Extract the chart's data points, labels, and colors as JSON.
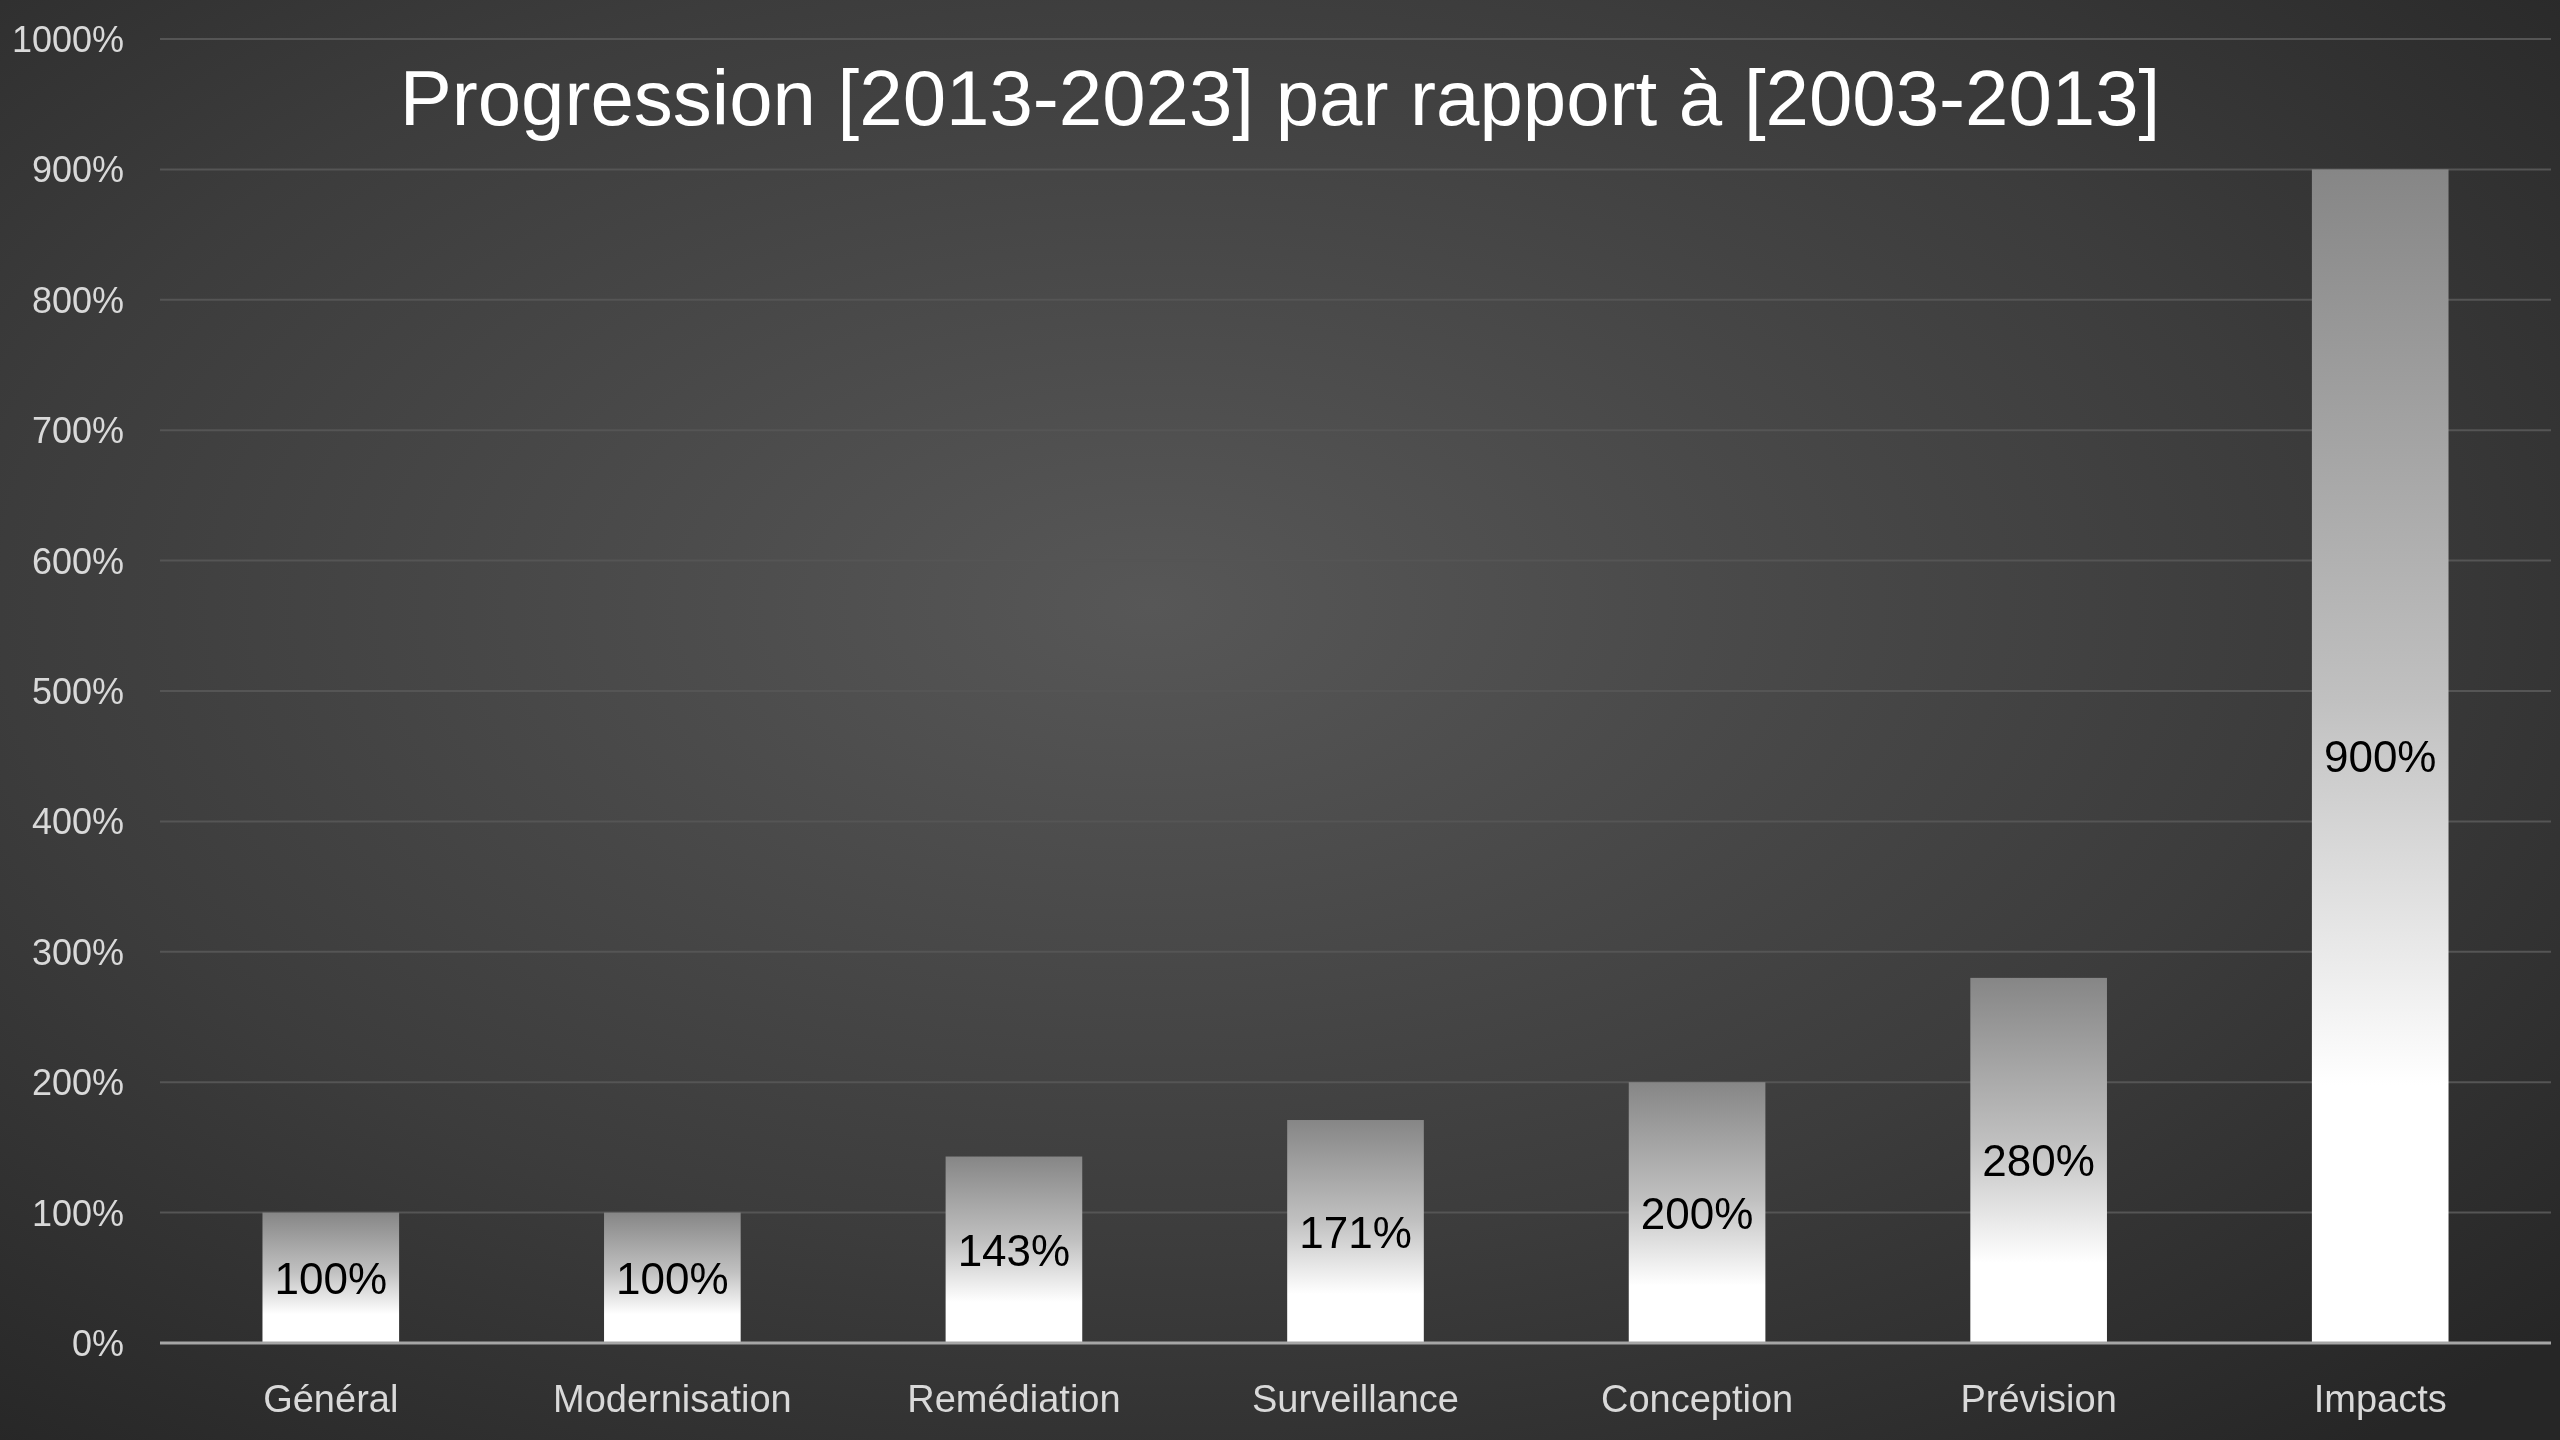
{
  "chart_data": {
    "type": "bar",
    "title": "Progression [2013-2023] par rapport à [2003-2013]",
    "categories": [
      "Général",
      "Modernisation",
      "Remédiation",
      "Surveillance",
      "Conception",
      "Prévision",
      "Impacts"
    ],
    "values": [
      100,
      100,
      143,
      171,
      200,
      280,
      900
    ],
    "value_labels": [
      "100%",
      "100%",
      "143%",
      "171%",
      "200%",
      "280%",
      "900%"
    ],
    "color": "#ffffff",
    "ylim": [
      0,
      1000
    ],
    "yticks": [
      {
        "value": 0,
        "label": "0%"
      },
      {
        "value": 100,
        "label": "100%"
      },
      {
        "value": 200,
        "label": "200%"
      },
      {
        "value": 300,
        "label": "300%"
      },
      {
        "value": 400,
        "label": "400%"
      },
      {
        "value": 500,
        "label": "500%"
      },
      {
        "value": 600,
        "label": "600%"
      },
      {
        "value": 700,
        "label": "700%"
      },
      {
        "value": 800,
        "label": "800%"
      },
      {
        "value": 900,
        "label": "900%"
      },
      {
        "value": 1000,
        "label": "1000%"
      }
    ],
    "grid": "y"
  }
}
